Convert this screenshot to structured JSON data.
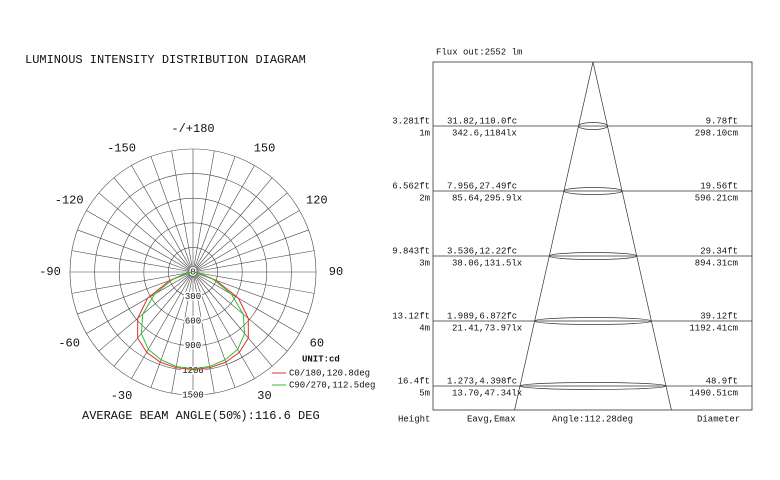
{
  "chart_data": {
    "type": "polar",
    "title": "LUMINOUS INTENSITY DISTRIBUTION DIAGRAM",
    "footer": "AVERAGE BEAM ANGLE(50%):116.6 DEG",
    "unit": "UNIT:cd",
    "theta": [
      -90,
      -80,
      -70,
      -60,
      -50,
      -40,
      -30,
      -20,
      -10,
      0,
      10,
      20,
      30,
      40,
      50,
      60,
      70,
      80,
      90
    ],
    "series": [
      {
        "name": "C0/180,120.8deg",
        "color": "#e03030",
        "values": [
          10,
          80,
          300,
          640,
          880,
          1050,
          1130,
          1170,
          1185,
          1190,
          1185,
          1170,
          1130,
          1050,
          880,
          640,
          300,
          80,
          10
        ]
      },
      {
        "name": "C90/270,112.5deg",
        "color": "#30c030",
        "values": [
          10,
          70,
          260,
          540,
          800,
          980,
          1090,
          1140,
          1170,
          1180,
          1170,
          1140,
          1090,
          980,
          800,
          540,
          260,
          70,
          10
        ]
      }
    ],
    "rlim": [
      0,
      1500
    ],
    "rticks": [
      0,
      300,
      600,
      900,
      1200,
      1500
    ],
    "angle_ticks": [
      {
        "value": 180,
        "label": "-/+180"
      },
      -150,
      150,
      -120,
      120,
      -90,
      90,
      -60,
      60,
      -30,
      30
    ]
  },
  "cone": {
    "flux": "Flux out:2552 lm",
    "rows": [
      {
        "height_ft": "3.281ft",
        "height_m": "1m",
        "fc": "31.82,110.0fc",
        "lux": "342.6,1184lx",
        "dia_ft": "9.78ft",
        "dia_cm": "298.10cm"
      },
      {
        "height_ft": "6.562ft",
        "height_m": "2m",
        "fc": "7.956,27.49fc",
        "lux": "85.64,295.9lx",
        "dia_ft": "19.56ft",
        "dia_cm": "596.21cm"
      },
      {
        "height_ft": "9.843ft",
        "height_m": "3m",
        "fc": "3.536,12.22fc",
        "lux": "38.06,131.5lx",
        "dia_ft": "29.34ft",
        "dia_cm": "894.31cm"
      },
      {
        "height_ft": "13.12ft",
        "height_m": "4m",
        "fc": "1.989,6.872fc",
        "lux": "21.41,73.97lx",
        "dia_ft": "39.12ft",
        "dia_cm": "1192.41cm"
      },
      {
        "height_ft": "16.4ft",
        "height_m": "5m",
        "fc": "1.273,4.398fc",
        "lux": "13.70,47.34lx",
        "dia_ft": "48.9ft",
        "dia_cm": "1490.51cm"
      }
    ],
    "footer": [
      "Height",
      "Eavg,Emax",
      "Angle:112.28deg",
      "Diameter"
    ]
  }
}
